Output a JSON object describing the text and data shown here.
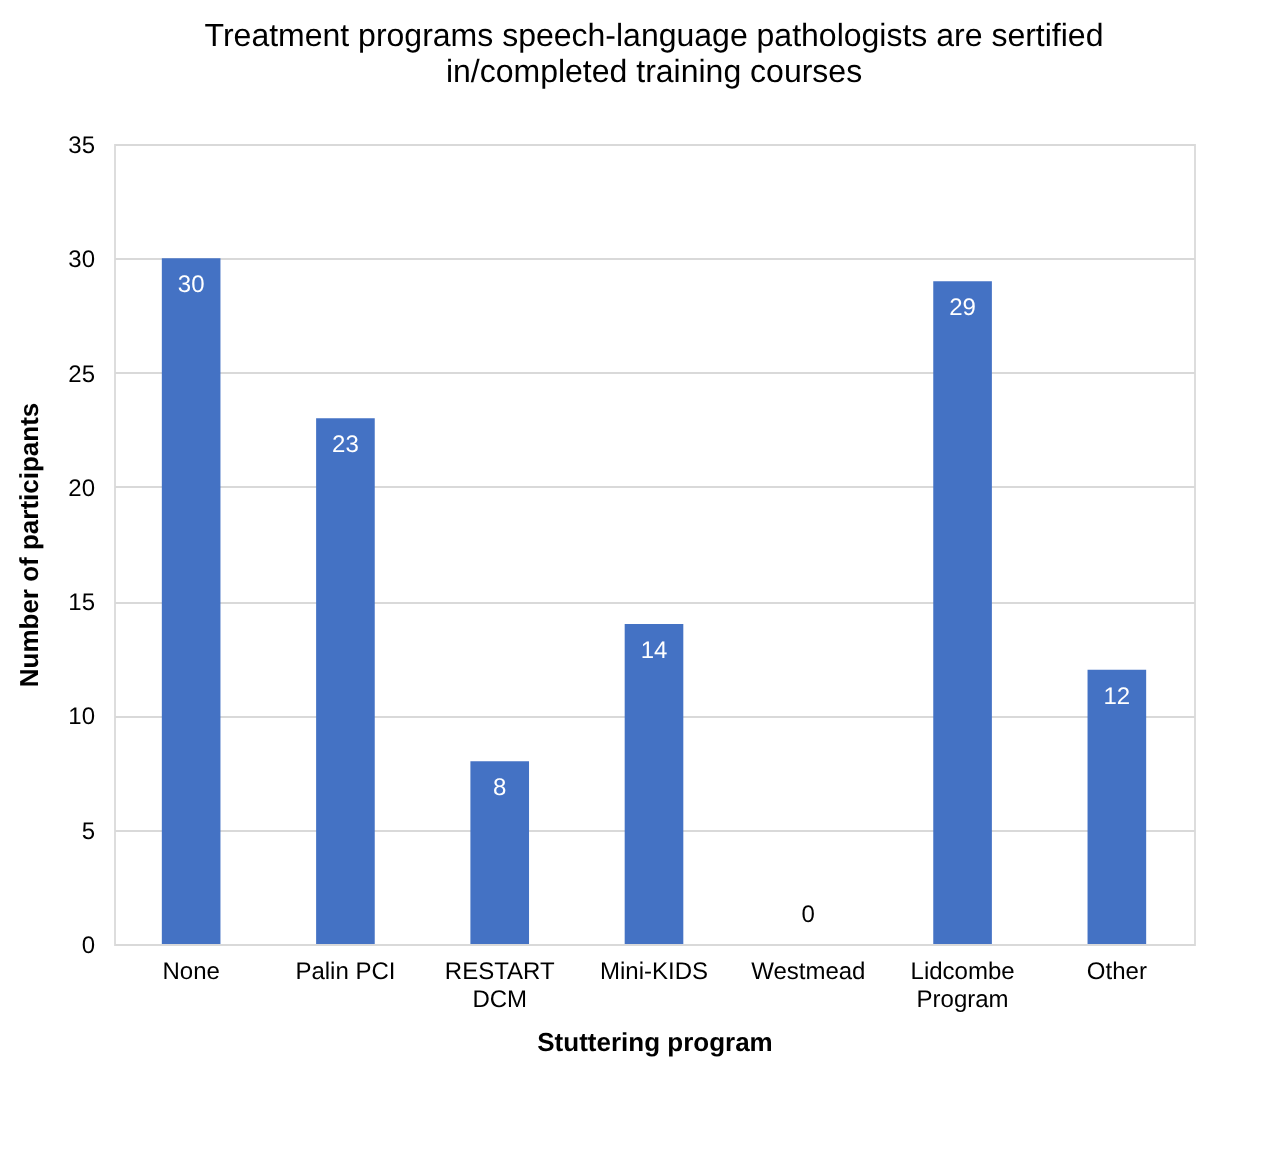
{
  "chart_data": {
    "type": "bar",
    "title": "Treatment programs speech-language pathologists are sertified in/completed training courses",
    "xlabel": "Stuttering program",
    "ylabel": "Number of participants",
    "categories": [
      "None",
      "Palin PCI",
      "RESTART DCM",
      "Mini-KIDS",
      "Westmead",
      "Lidcombe Program",
      "Other"
    ],
    "values": [
      30,
      23,
      8,
      14,
      0,
      29,
      12
    ],
    "color": "#4472c4",
    "ylim": [
      0,
      35
    ],
    "yticks": [
      0,
      5,
      10,
      15,
      20,
      25,
      30,
      35
    ],
    "grid": "y",
    "data_labels": true
  }
}
